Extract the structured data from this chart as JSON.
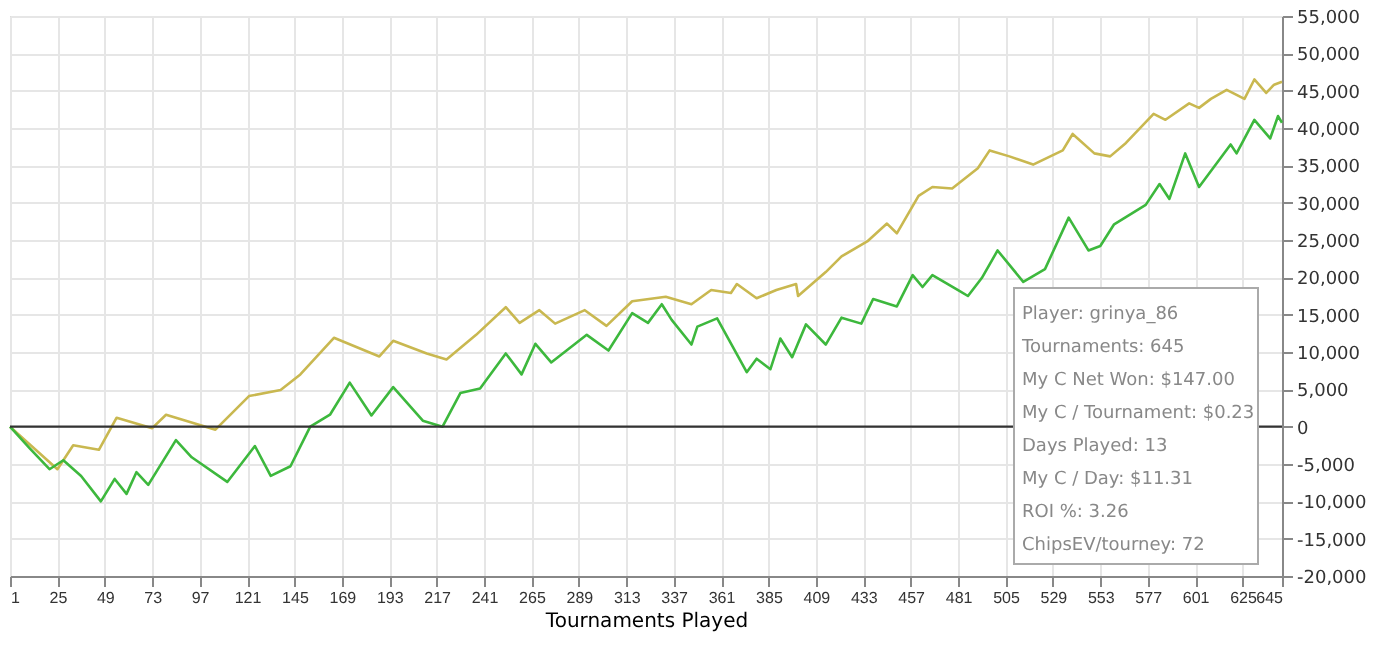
{
  "chart_data": {
    "type": "line",
    "xlabel": "Tournaments Played",
    "xlim": [
      1,
      645
    ],
    "xticks": [
      1,
      25,
      49,
      73,
      97,
      121,
      145,
      169,
      193,
      217,
      241,
      265,
      289,
      313,
      337,
      361,
      385,
      409,
      433,
      457,
      481,
      505,
      529,
      553,
      577,
      601,
      625,
      645
    ],
    "ylim": [
      -20000,
      55000
    ],
    "yticks": [
      {
        "value": -20000,
        "label": "-20,000"
      },
      {
        "value": -15000,
        "label": "-15,000"
      },
      {
        "value": -10000,
        "label": "-10,000"
      },
      {
        "value": -5000,
        "label": "-5,000"
      },
      0,
      {
        "value": 5000,
        "label": "5,000"
      },
      {
        "value": 10000,
        "label": "10,000"
      },
      {
        "value": 15000,
        "label": "15,000"
      },
      {
        "value": 20000,
        "label": "20,000"
      },
      {
        "value": 25000,
        "label": "25,000"
      },
      {
        "value": 30000,
        "label": "30,000"
      },
      {
        "value": 35000,
        "label": "35,000"
      },
      {
        "value": 40000,
        "label": "40,000"
      },
      {
        "value": 45000,
        "label": "45,000"
      },
      {
        "value": 50000,
        "label": "50,000"
      },
      {
        "value": 55000,
        "label": "55,000"
      }
    ],
    "grid": true,
    "legend": false,
    "marker": "none",
    "line_style": "solid",
    "ref_lines": [
      {
        "axis": "y",
        "value": 0,
        "label": null,
        "color": "#333333"
      }
    ],
    "series": [
      {
        "color": "#c9b850",
        "x": [
          1,
          25,
          33,
          46,
          55,
          73,
          80,
          105,
          122,
          138,
          148,
          165,
          188,
          195,
          212,
          222,
          237,
          252,
          259,
          269,
          277,
          292,
          303,
          316,
          333,
          346,
          356,
          366,
          369,
          379,
          389,
          399,
          400,
          414,
          422,
          435,
          445,
          450,
          461,
          468,
          478,
          491,
          497,
          507,
          519,
          534,
          539,
          550,
          558,
          566,
          580,
          586,
          598,
          603,
          609,
          617,
          626,
          631,
          637,
          641,
          645
        ],
        "values": [
          0,
          -5700,
          -2500,
          -3100,
          1200,
          -200,
          1600,
          -400,
          4100,
          4900,
          7000,
          11900,
          9400,
          11500,
          9800,
          9000,
          12300,
          16000,
          13900,
          15600,
          13800,
          15600,
          13500,
          16800,
          17400,
          16400,
          18300,
          17900,
          19100,
          17200,
          18300,
          19100,
          17500,
          20700,
          22800,
          24800,
          27200,
          25900,
          30900,
          32100,
          31900,
          34600,
          37000,
          36200,
          35100,
          37000,
          39200,
          36600,
          36200,
          38000,
          41900,
          41100,
          43300,
          42700,
          43900,
          45100,
          43900,
          46500,
          44700,
          45800,
          46200
        ]
      },
      {
        "color": "#3db83d",
        "x": [
          1,
          11,
          21,
          28,
          37,
          47,
          54,
          60,
          65,
          71,
          85,
          93,
          111,
          125,
          133,
          143,
          153,
          163,
          173,
          184,
          195,
          210,
          220,
          229,
          239,
          252,
          260,
          267,
          275,
          293,
          304,
          316,
          324,
          331,
          336,
          346,
          349,
          359,
          374,
          379,
          386,
          391,
          397,
          404,
          414,
          422,
          432,
          438,
          450,
          458,
          463,
          468,
          481,
          486,
          493,
          501,
          514,
          525,
          537,
          547,
          553,
          560,
          576,
          583,
          588,
          596,
          603,
          619,
          622,
          631,
          639,
          643,
          645
        ],
        "values": [
          0,
          -2900,
          -5700,
          -4500,
          -6600,
          -10000,
          -7000,
          -9000,
          -6100,
          -7800,
          -1800,
          -4100,
          -7400,
          -2600,
          -6600,
          -5300,
          0,
          1600,
          5900,
          1500,
          5300,
          800,
          0,
          4500,
          5100,
          9800,
          7000,
          11100,
          8600,
          12300,
          10200,
          15200,
          13900,
          16400,
          14300,
          11000,
          13400,
          14500,
          7300,
          9100,
          7700,
          11800,
          9300,
          13700,
          11000,
          14600,
          13800,
          17100,
          16100,
          20300,
          18700,
          20300,
          18300,
          17500,
          19900,
          23600,
          19400,
          21100,
          28000,
          23600,
          24200,
          27100,
          29700,
          32500,
          30500,
          36600,
          32100,
          37800,
          36600,
          41100,
          38600,
          41600,
          40700
        ]
      }
    ],
    "annotations": [
      "Player: grinya_86",
      "Tournaments: 645",
      "My C Net Won: $147.00",
      "My C / Tournament: $0.23",
      "Days Played: 13",
      "My C / Day: $11.31",
      "ROI %: 3.26",
      "ChipsEV/tourney: 72"
    ]
  }
}
